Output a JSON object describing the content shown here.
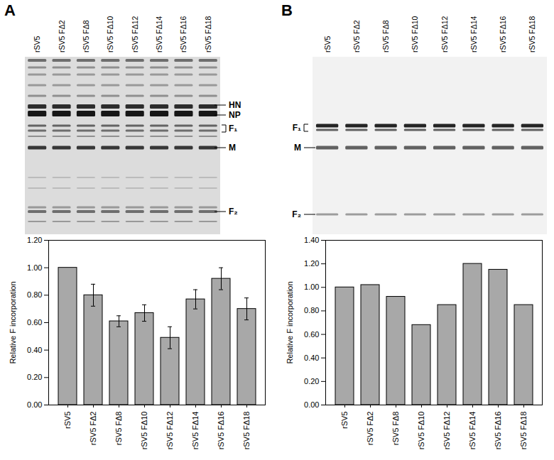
{
  "chart_data": [
    {
      "type": "bar",
      "title": "A",
      "categories": [
        "rSV5",
        "rSV5 FΔ2",
        "rSV5 FΔ8",
        "rSV5 FΔ10",
        "rSV5 FΔ12",
        "rSV5 FΔ14",
        "rSV5 FΔ16",
        "rSV5 FΔ18"
      ],
      "values": [
        1.0,
        0.8,
        0.61,
        0.67,
        0.49,
        0.77,
        0.92,
        0.7
      ],
      "errors": [
        null,
        0.08,
        0.04,
        0.06,
        0.08,
        0.07,
        0.08,
        0.08
      ],
      "color": "#a8a8a8",
      "ylabel": "Relative F incorporation",
      "ylim": [
        0,
        1.2
      ],
      "yticks": [
        {
          "value": 0,
          "label": "0.00"
        },
        {
          "value": 0.2,
          "label": "0.20"
        },
        {
          "value": 0.4,
          "label": "0.40"
        },
        {
          "value": 0.6,
          "label": "0.60"
        },
        {
          "value": 0.8,
          "label": "0.80"
        },
        {
          "value": 1.0,
          "label": "1.00"
        },
        {
          "value": 1.2,
          "label": "1.20"
        }
      ],
      "annotations": [
        "HN",
        "NP",
        "F₁",
        "M",
        "F₂"
      ]
    },
    {
      "type": "bar",
      "title": "B",
      "categories": [
        "rSV5",
        "rSV5 FΔ2",
        "rSV5 FΔ8",
        "rSV5 FΔ10",
        "rSV5 FΔ12",
        "rSV5 FΔ14",
        "rSV5 FΔ16",
        "rSV5 FΔ18"
      ],
      "values": [
        1.0,
        1.02,
        0.92,
        0.68,
        0.85,
        1.2,
        1.15,
        0.85
      ],
      "color": "#a8a8a8",
      "ylabel": "Relative F incorporation",
      "ylim": [
        0,
        1.4
      ],
      "yticks": [
        {
          "value": 0,
          "label": "0.00"
        },
        {
          "value": 0.2,
          "label": "0.20"
        },
        {
          "value": 0.4,
          "label": "0.40"
        },
        {
          "value": 0.6,
          "label": "0.60"
        },
        {
          "value": 0.8,
          "label": "0.80"
        },
        {
          "value": 1.0,
          "label": "1.00"
        },
        {
          "value": 1.2,
          "label": "1.20"
        },
        {
          "value": 1.4,
          "label": "1.40"
        }
      ],
      "annotations": [
        "F₁",
        "M",
        "F₂"
      ]
    }
  ]
}
